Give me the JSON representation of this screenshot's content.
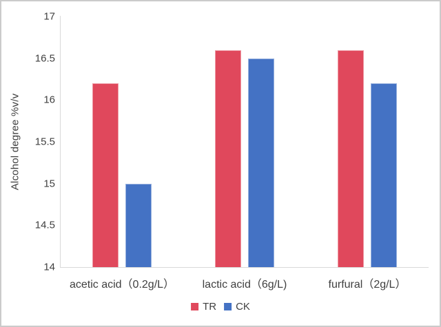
{
  "chart_data": {
    "type": "bar",
    "title": "",
    "xlabel": "",
    "ylabel": "Alcohol degree %v/v",
    "categories": [
      "acetic acid（0.2g/L）",
      "lactic acid（6g/L)",
      "furfural（2g/L）"
    ],
    "series": [
      {
        "name": "TR",
        "color": "#e0485c",
        "values": [
          16.2,
          16.6,
          16.6
        ]
      },
      {
        "name": "CK",
        "color": "#4472c4",
        "values": [
          15.0,
          16.5,
          16.2
        ]
      }
    ],
    "ylim": [
      14,
      17
    ],
    "yticks": [
      17,
      16.5,
      16,
      15.5,
      15,
      14.5,
      14
    ],
    "grid": false,
    "legend_position": "bottom"
  },
  "style": {
    "axis_color": "#d9d9d9",
    "text_color": "#404040",
    "frame_border_color": "#cbcbcb",
    "background": "#ffffff"
  }
}
